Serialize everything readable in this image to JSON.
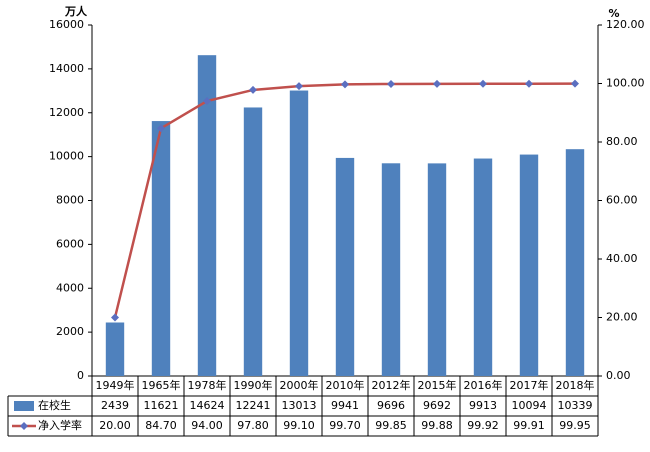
{
  "chart_data": {
    "type": "bar_line",
    "y_label": "万人",
    "y2_label": "%",
    "categories": [
      "1949年",
      "1965年",
      "1978年",
      "1990年",
      "2000年",
      "2010年",
      "2012年",
      "2015年",
      "2016年",
      "2017年",
      "2018年"
    ],
    "series": [
      {
        "name": "在校生",
        "color": "#4f81bd",
        "type": "bar",
        "values": [
          2439,
          11621,
          14624,
          12241,
          13013,
          9941,
          9696,
          9692,
          9913,
          10094,
          10339
        ]
      },
      {
        "name": "净入学率",
        "color": "#c0504d",
        "marker_color": "#5b6fc0",
        "type": "line",
        "axis": "y2",
        "values": [
          20,
          84.7,
          94,
          97.8,
          99.1,
          99.7,
          99.85,
          99.88,
          99.92,
          99.91,
          99.95
        ],
        "value_labels": [
          "20.00",
          "84.70",
          "94.00",
          "97.80",
          "99.10",
          "99.70",
          "99.85",
          "99.88",
          "99.92",
          "99.91",
          "99.95"
        ]
      }
    ],
    "ylim": [
      0,
      16000
    ],
    "yticks": [
      0,
      2000,
      4000,
      6000,
      8000,
      10000,
      12000,
      14000,
      16000
    ],
    "y2lim": [
      0,
      120
    ],
    "y2ticks": [
      {
        "value": 0,
        "label": "0.00"
      },
      {
        "value": 20,
        "label": "20.00"
      },
      {
        "value": 40,
        "label": "40.00"
      },
      {
        "value": 60,
        "label": "60.00"
      },
      {
        "value": 80,
        "label": "80.00"
      },
      {
        "value": 100,
        "label": "100.00"
      },
      {
        "value": 120,
        "label": "120.00"
      }
    ]
  }
}
